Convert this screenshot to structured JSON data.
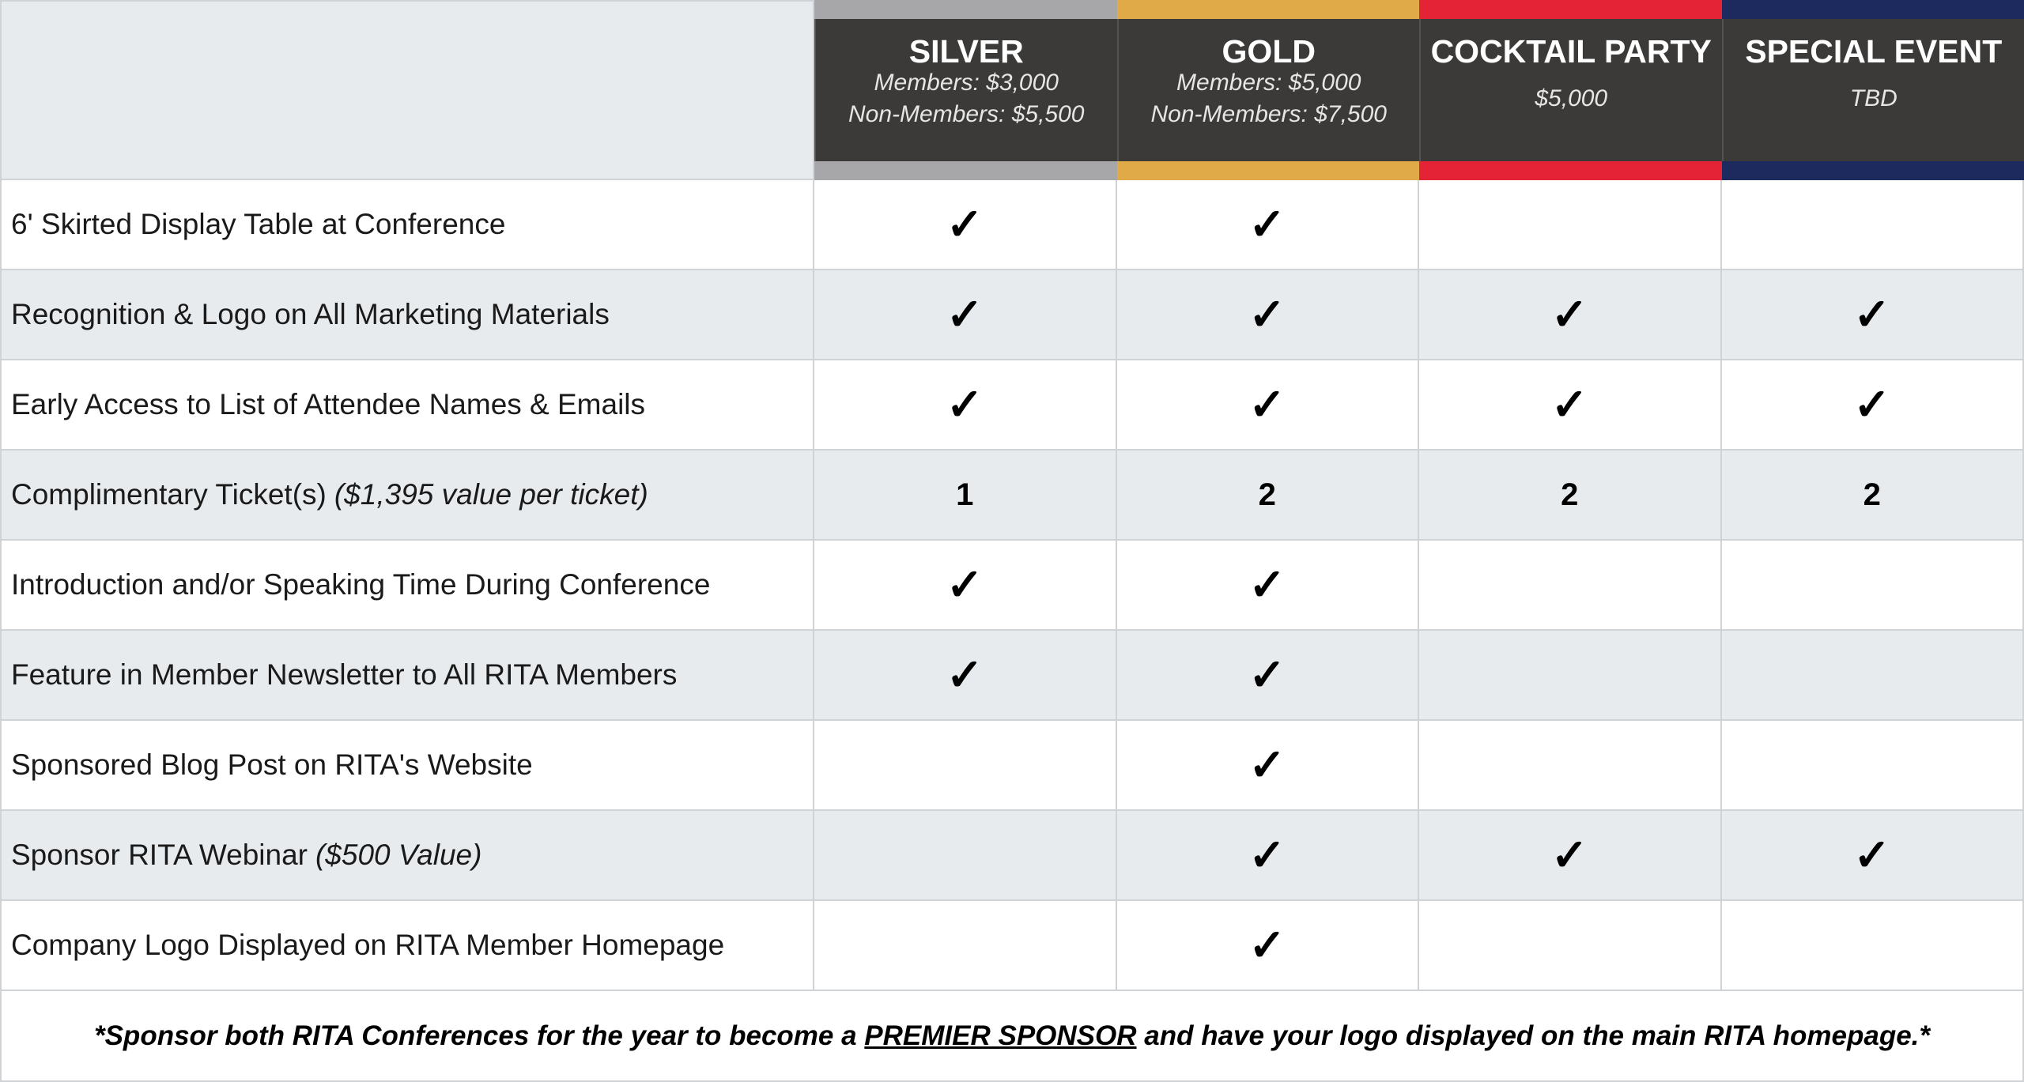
{
  "header": {
    "columns": [
      {
        "name": "SILVER",
        "color": "#a7a7a9",
        "price_lines": [
          "Members: $3,000",
          "Non-Members: $5,500"
        ]
      },
      {
        "name": "GOLD",
        "color": "#e0aa48",
        "price_lines": [
          "Members: $5,000",
          "Non-Members: $7,500"
        ]
      },
      {
        "name": "COCKTAIL PARTY",
        "color": "#e42336",
        "price_lines": [
          "$5,000"
        ]
      },
      {
        "name": "SPECIAL EVENT",
        "color": "#1d2a5d",
        "price_lines": [
          "TBD"
        ]
      }
    ]
  },
  "rows": [
    {
      "label": "6' Skirted Display Table at Conference",
      "cells": [
        "✓",
        "✓",
        null,
        null
      ]
    },
    {
      "label": "Recognition & Logo on All Marketing Materials",
      "cells": [
        "✓",
        "✓",
        "✓",
        "✓"
      ]
    },
    {
      "label": "Early Access to List of Attendee Names & Emails",
      "cells": [
        "✓",
        "✓",
        "✓",
        "✓"
      ]
    },
    {
      "label": "Complimentary Ticket(s)",
      "note": "($1,395 value per ticket)",
      "cells": [
        "1",
        "2",
        "2",
        "2"
      ]
    },
    {
      "label": "Introduction and/or Speaking Time During Conference",
      "cells": [
        "✓",
        "✓",
        null,
        null
      ]
    },
    {
      "label": "Feature in Member Newsletter to All RITA Members",
      "cells": [
        "✓",
        "✓",
        null,
        null
      ]
    },
    {
      "label": "Sponsored Blog Post on RITA's Website",
      "cells": [
        null,
        "✓",
        null,
        null
      ]
    },
    {
      "label": "Sponsor RITA Webinar",
      "note": "($500 Value)",
      "cells": [
        null,
        "✓",
        "✓",
        "✓"
      ]
    },
    {
      "label": "Company Logo Displayed on RITA Member Homepage",
      "cells": [
        null,
        "✓",
        null,
        null
      ]
    }
  ],
  "footer": {
    "before": "*Sponsor both RITA Conferences for the year to become a ",
    "link": "PREMIER SPONSOR",
    "after": " and have your logo displayed on the main RITA homepage.*"
  }
}
